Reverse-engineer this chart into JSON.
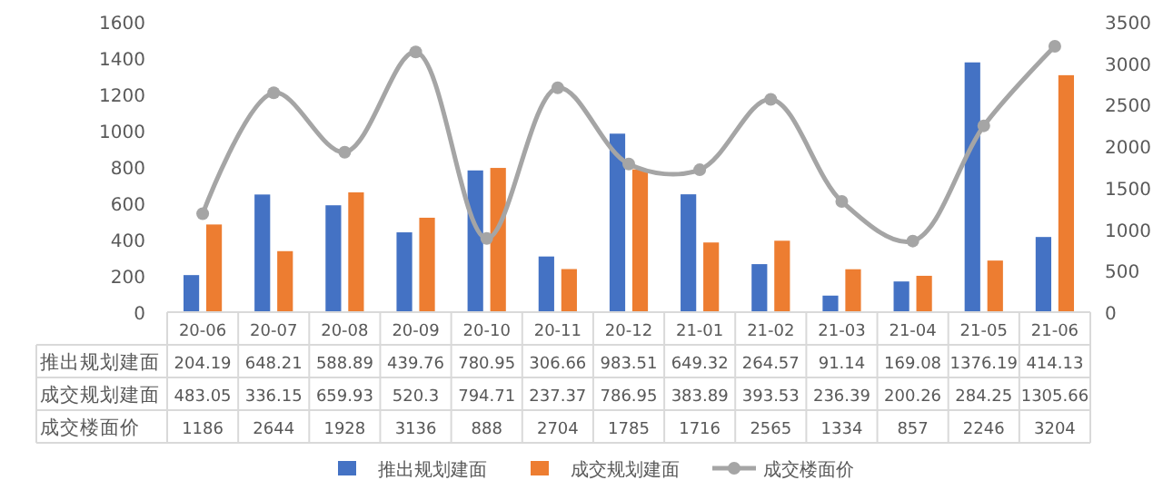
{
  "chart_data": {
    "type": "bar",
    "categories": [
      "20-06",
      "20-07",
      "20-08",
      "20-09",
      "20-10",
      "20-11",
      "20-12",
      "21-01",
      "21-02",
      "21-03",
      "21-04",
      "21-05",
      "21-06"
    ],
    "series": [
      {
        "name": "推出规划建面",
        "color": "#4472c4",
        "values": [
          204.19,
          648.21,
          588.89,
          439.76,
          780.95,
          306.66,
          983.51,
          649.32,
          264.57,
          91.14,
          169.08,
          1376.19,
          414.13
        ]
      },
      {
        "name": "成交规划建面",
        "color": "#ed7d31",
        "values": [
          483.05,
          336.15,
          659.93,
          520.3,
          794.71,
          237.37,
          786.95,
          383.89,
          393.53,
          236.39,
          200.26,
          284.25,
          1305.66
        ]
      },
      {
        "name": "成交楼面价",
        "color": "#a5a5a5",
        "type": "line",
        "axis": "y2",
        "marker": "circle",
        "values": [
          1186,
          2644,
          1928,
          3136,
          888,
          2704,
          1785,
          1716,
          2565,
          1334,
          857,
          2246,
          3204
        ]
      }
    ],
    "ylim": [
      0,
      1600
    ],
    "yticks": [
      0,
      200,
      400,
      600,
      800,
      1000,
      1200,
      1400,
      1600
    ],
    "y2lim": [
      0,
      3500
    ],
    "y2ticks": [
      0,
      500,
      1000,
      1500,
      2000,
      2500,
      3000,
      3500
    ],
    "data_labels": true,
    "legend": "bottom",
    "grid": false
  }
}
